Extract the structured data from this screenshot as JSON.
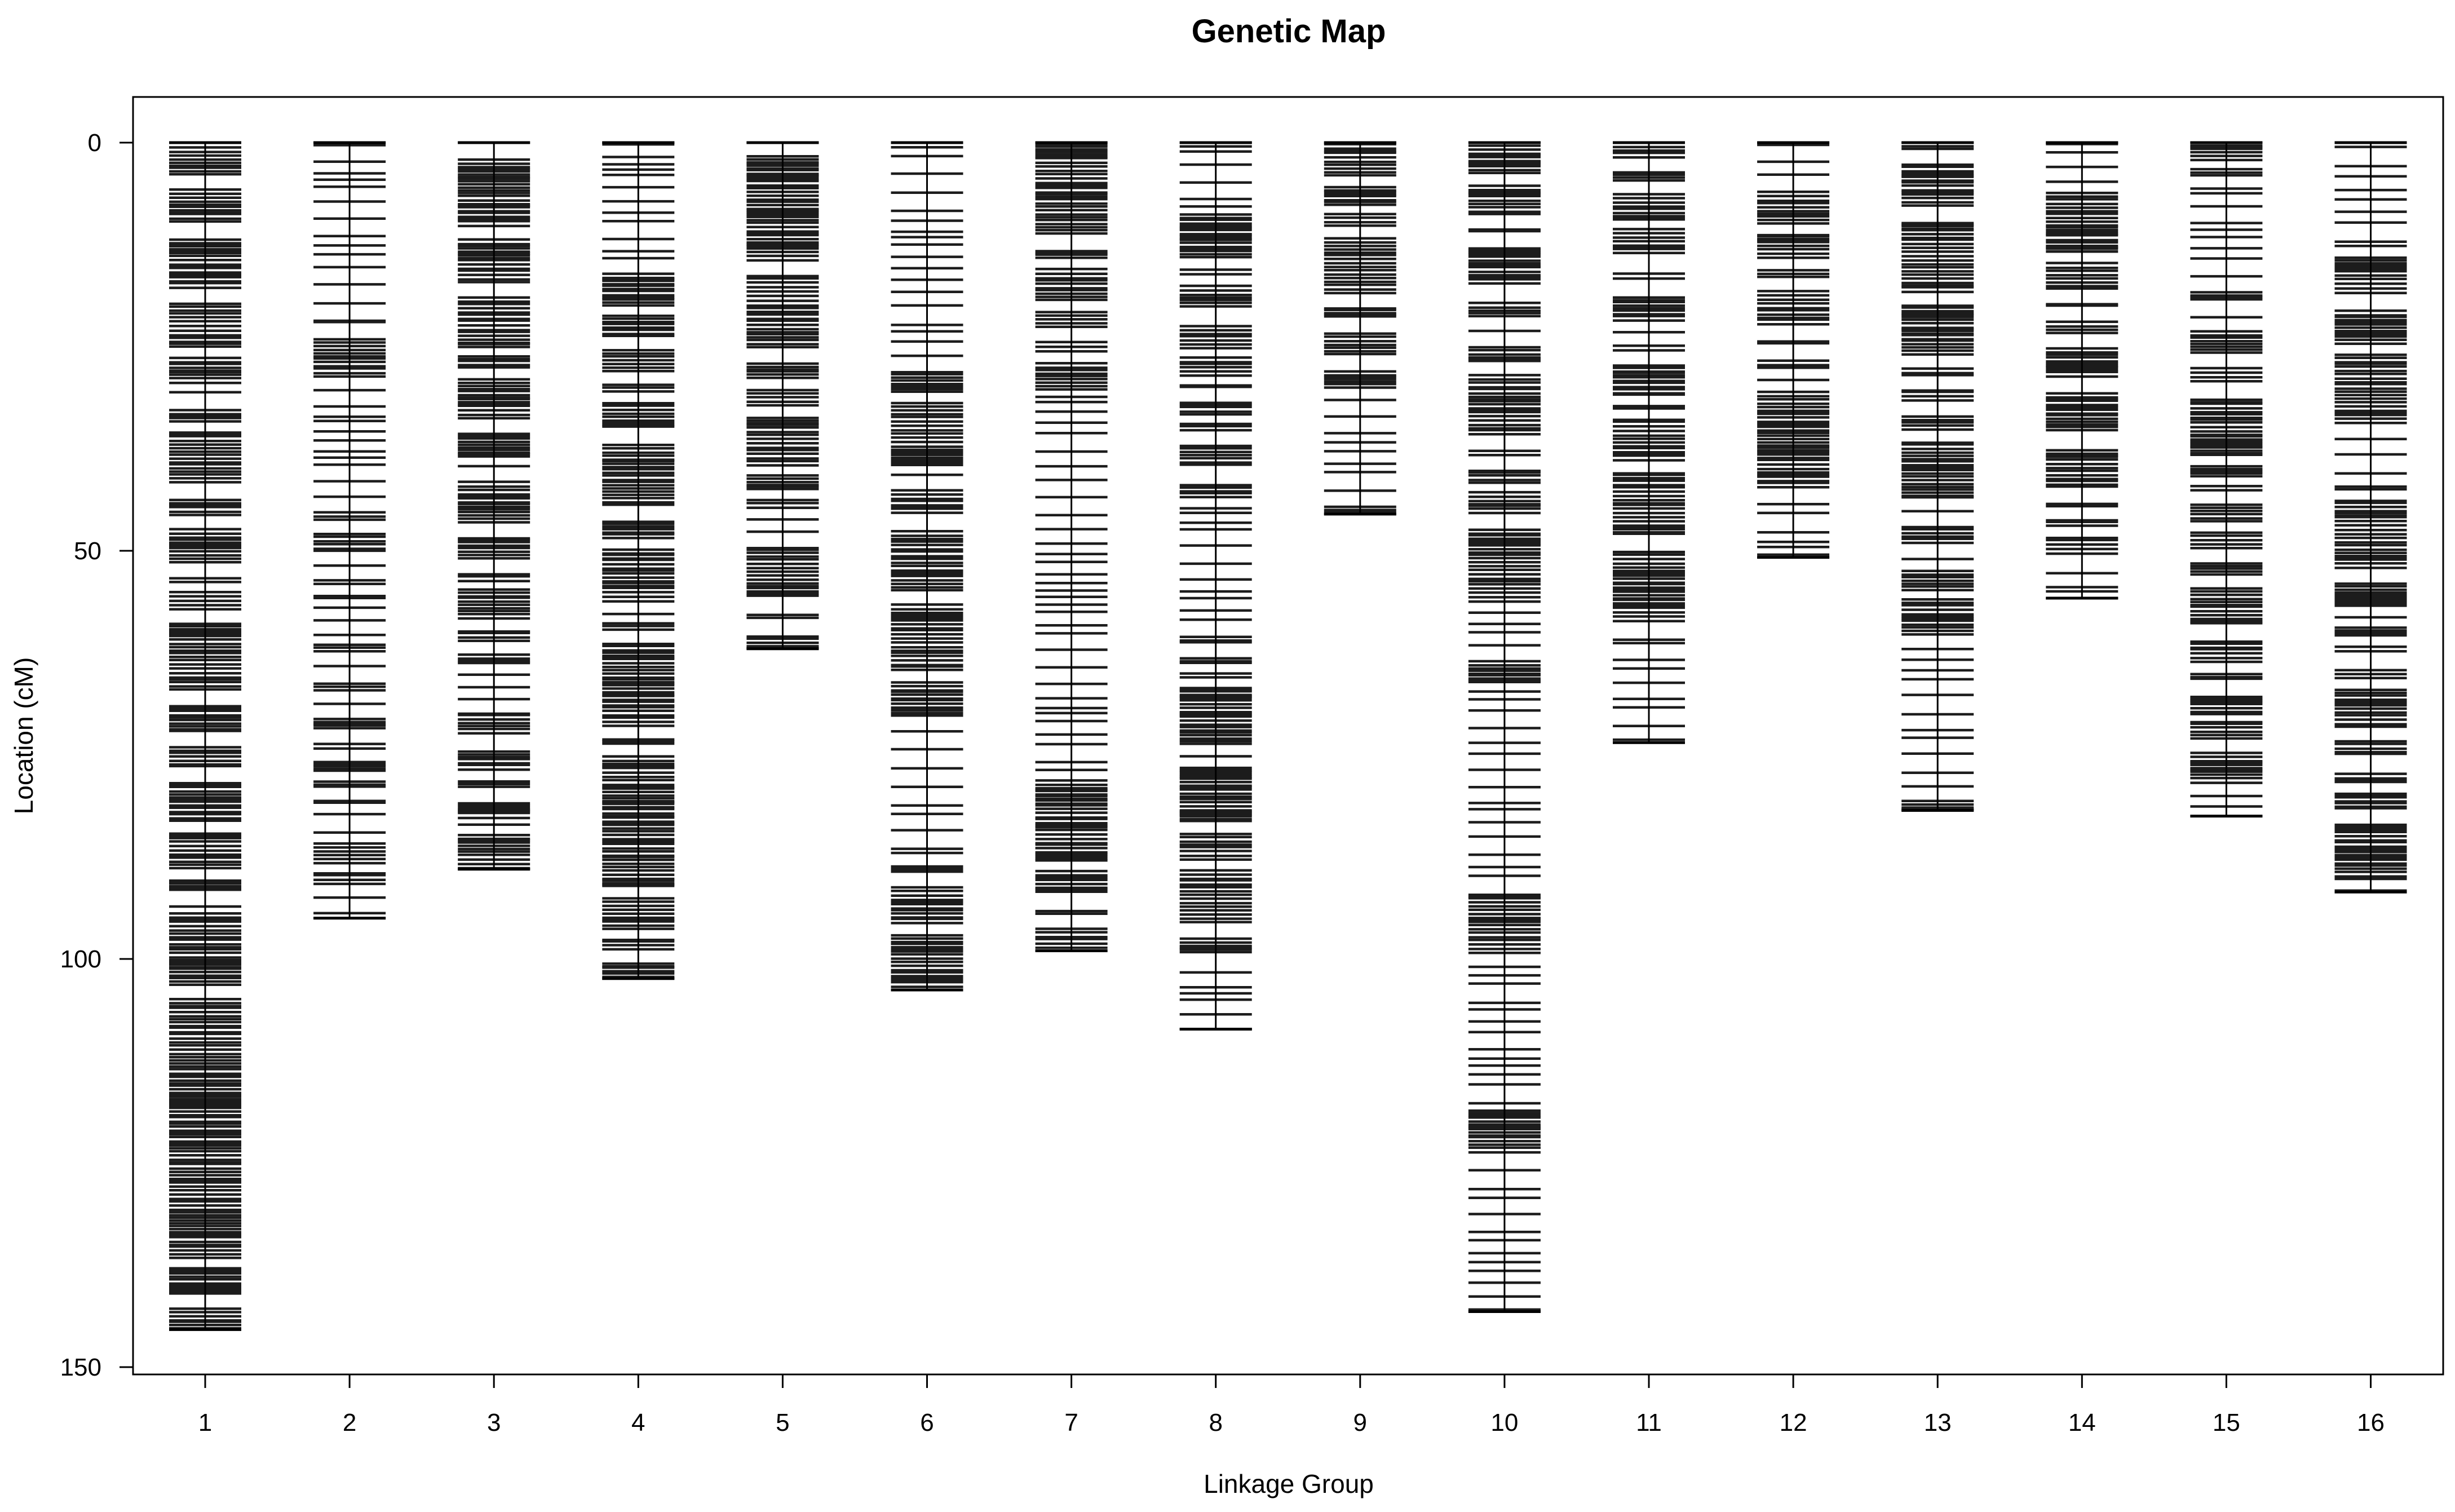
{
  "chart_data": {
    "type": "genetic-map",
    "title": "Genetic Map",
    "xlabel": "Linkage Group",
    "ylabel": "Location (cM)",
    "ylim": [
      0,
      150
    ],
    "yticks": [
      0,
      50,
      100,
      150
    ],
    "groups": [
      {
        "label": "1",
        "length": 145.4,
        "density": 0.92,
        "gaps": [
          [
            29,
            31
          ],
          [
            72,
            74
          ],
          [
            92,
            94
          ]
        ]
      },
      {
        "label": "2",
        "length": 95.0,
        "density": 0.6,
        "gaps": [
          [
            0,
            19
          ],
          [
            34,
            39
          ]
        ]
      },
      {
        "label": "3",
        "length": 89.0,
        "density": 0.88,
        "gaps": [
          [
            66,
            68
          ],
          [
            82,
            84
          ]
        ]
      },
      {
        "label": "4",
        "length": 102.4,
        "density": 0.9,
        "gaps": [
          [
            0,
            15
          ],
          [
            56,
            58
          ]
        ]
      },
      {
        "label": "5",
        "length": 62.0,
        "density": 0.92,
        "gaps": [
          [
            46,
            49
          ],
          [
            58,
            60
          ]
        ]
      },
      {
        "label": "6",
        "length": 103.8,
        "density": 0.88,
        "gaps": [
          [
            0,
            28
          ],
          [
            70,
            85
          ]
        ]
      },
      {
        "label": "7",
        "length": 99.0,
        "density": 0.92,
        "gaps": [
          [
            30,
            78
          ]
        ]
      },
      {
        "label": "8",
        "length": 108.6,
        "density": 0.9,
        "gaps": [
          [
            0,
            8
          ],
          [
            45,
            58
          ],
          [
            100,
            109
          ]
        ]
      },
      {
        "label": "9",
        "length": 45.5,
        "density": 0.92,
        "gaps": [
          [
            10,
            11
          ],
          [
            30,
            44
          ]
        ]
      },
      {
        "label": "10",
        "length": 143.2,
        "density": 0.9,
        "gaps": [
          [
            56,
            62
          ],
          [
            66,
            90
          ],
          [
            100,
            118
          ],
          [
            124,
            144
          ]
        ]
      },
      {
        "label": "11",
        "length": 73.5,
        "density": 0.9,
        "gaps": [
          [
            14,
            18
          ],
          [
            62,
            74
          ]
        ]
      },
      {
        "label": "12",
        "length": 50.8,
        "density": 0.9,
        "gaps": [
          [
            2,
            4
          ],
          [
            42,
            51
          ]
        ]
      },
      {
        "label": "13",
        "length": 81.8,
        "density": 0.9,
        "gaps": [
          [
            60,
            79
          ]
        ]
      },
      {
        "label": "14",
        "length": 55.8,
        "density": 0.9,
        "gaps": [
          [
            0,
            5
          ],
          [
            50,
            53
          ]
        ]
      },
      {
        "label": "15",
        "length": 82.5,
        "density": 0.9,
        "gaps": [
          [
            6,
            14
          ],
          [
            78,
            83
          ]
        ]
      },
      {
        "label": "16",
        "length": 91.8,
        "density": 0.9,
        "gaps": [
          [
            0,
            12
          ],
          [
            34,
            42
          ]
        ]
      }
    ]
  }
}
